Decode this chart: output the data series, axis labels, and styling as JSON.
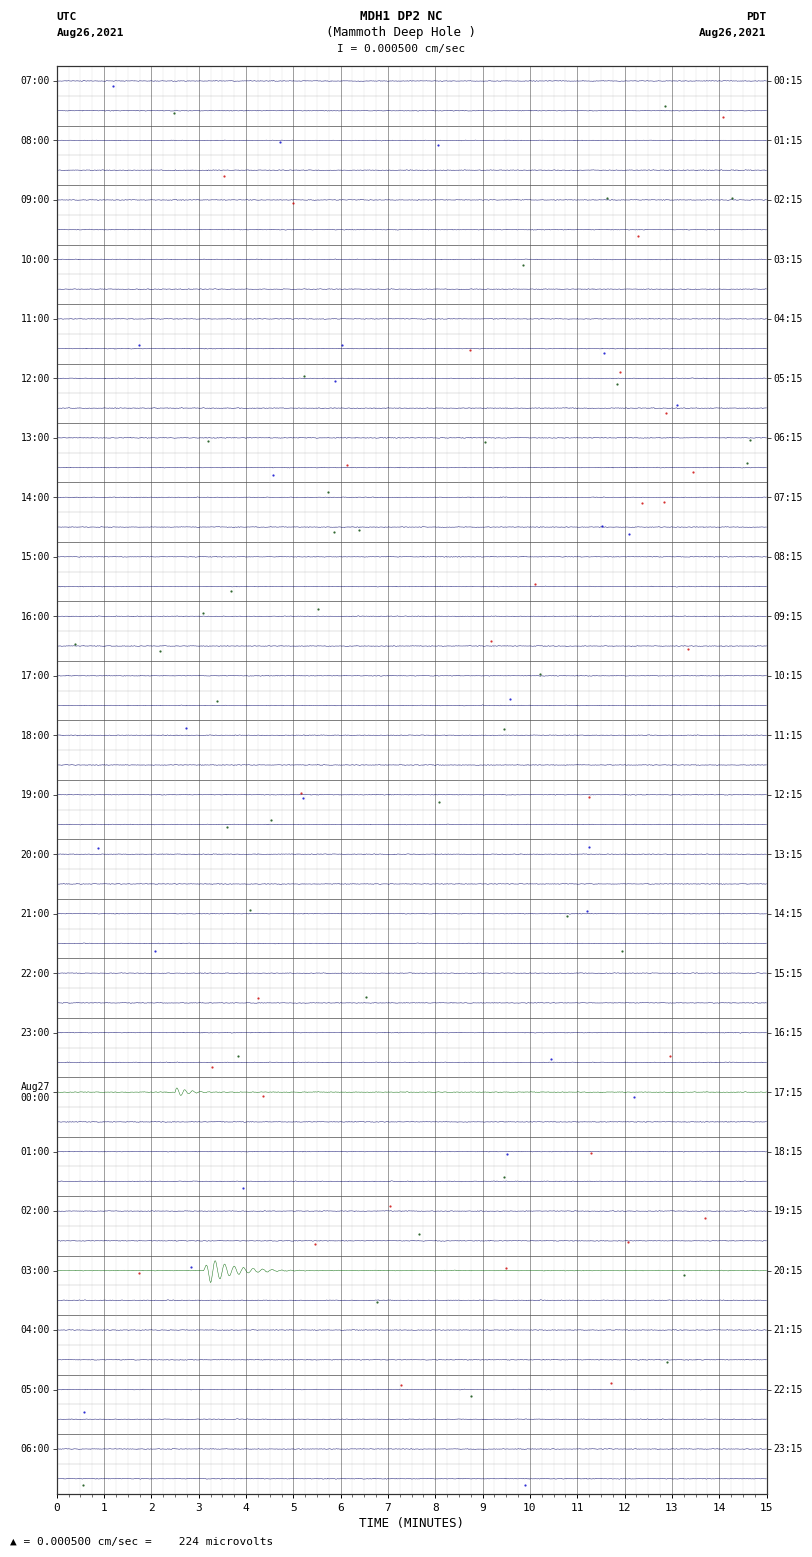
{
  "title_line1": "MDH1 DP2 NC",
  "title_line2": "(Mammoth Deep Hole )",
  "scale_label": "I = 0.000500 cm/sec",
  "left_header": "UTC",
  "left_date": "Aug26,2021",
  "right_header": "PDT",
  "right_date": "Aug26,2021",
  "bottom_label": "TIME (MINUTES)",
  "bottom_note": "▲ = 0.000500 cm/sec =    224 microvolts",
  "x_ticks": [
    0,
    1,
    2,
    3,
    4,
    5,
    6,
    7,
    8,
    9,
    10,
    11,
    12,
    13,
    14,
    15
  ],
  "utc_labels": [
    "07:00",
    "",
    "08:00",
    "",
    "09:00",
    "",
    "10:00",
    "",
    "11:00",
    "",
    "12:00",
    "",
    "13:00",
    "",
    "14:00",
    "",
    "15:00",
    "",
    "16:00",
    "",
    "17:00",
    "",
    "18:00",
    "",
    "19:00",
    "",
    "20:00",
    "",
    "21:00",
    "",
    "22:00",
    "",
    "23:00",
    "",
    "Aug27\n00:00",
    "",
    "01:00",
    "",
    "02:00",
    "",
    "03:00",
    "",
    "04:00",
    "",
    "05:00",
    "",
    "06:00",
    ""
  ],
  "pdt_labels": [
    "00:15",
    "",
    "01:15",
    "",
    "02:15",
    "",
    "03:15",
    "",
    "04:15",
    "",
    "05:15",
    "",
    "06:15",
    "",
    "07:15",
    "",
    "08:15",
    "",
    "09:15",
    "",
    "10:15",
    "",
    "11:15",
    "",
    "12:15",
    "",
    "13:15",
    "",
    "14:15",
    "",
    "15:15",
    "",
    "16:15",
    "",
    "17:15",
    "",
    "18:15",
    "",
    "19:15",
    "",
    "20:15",
    "",
    "21:15",
    "",
    "22:15",
    "",
    "23:15",
    ""
  ],
  "n_rows": 48,
  "noise_amplitude": 0.012,
  "eq_row_small": 34,
  "eq_row_large": 40,
  "eq_small_t": 2.5,
  "eq_small_amp": 0.18,
  "eq_small_decay": 0.25,
  "eq_large_t": 3.1,
  "eq_large_amp": 0.55,
  "eq_large_decay": 0.5,
  "bg_color": "#ffffff",
  "trace_color": "#000066",
  "grid_major_color": "#000000",
  "grid_minor_color": "#aaaaaa",
  "eq_color": "#006600",
  "spike_colors": [
    "#cc0000",
    "#0000cc",
    "#004400"
  ],
  "title_fontsize": 9,
  "label_fontsize": 7,
  "axis_label_fontsize": 8
}
